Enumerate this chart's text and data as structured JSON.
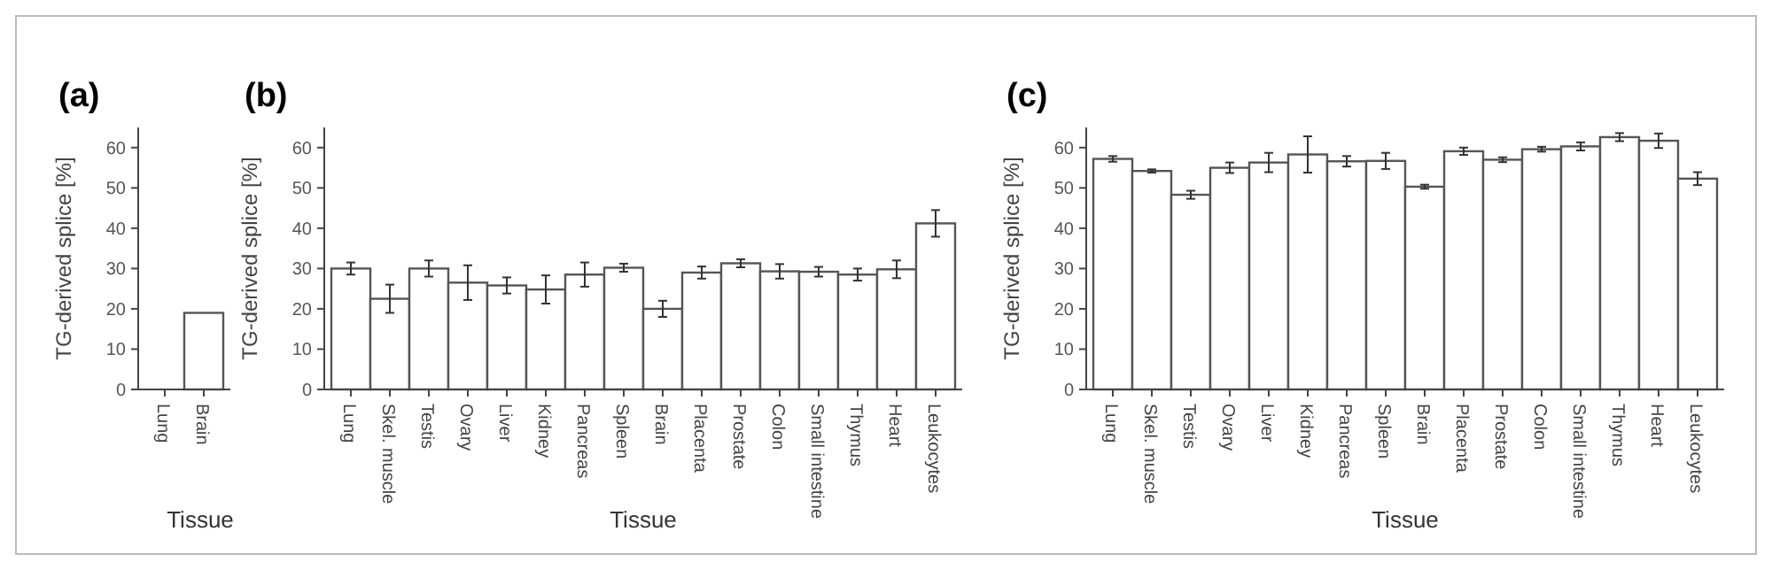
{
  "chart_data": [
    {
      "type": "bar",
      "title": "(a)",
      "xlabel": "Tissue",
      "ylabel": "TG-derived splice [%]",
      "categories": [
        "Lung",
        "Brain"
      ],
      "values": [
        0,
        19
      ],
      "color": "#ffffff",
      "ylim": [
        0,
        65
      ],
      "yticks": [
        0,
        10,
        20,
        30,
        40,
        50,
        60
      ]
    },
    {
      "type": "bar",
      "title": "(b)",
      "xlabel": "Tissue",
      "ylabel": "TG-derived splice [%]",
      "categories": [
        "Lung",
        "Skel. muscle",
        "Testis",
        "Ovary",
        "Liver",
        "Kidney",
        "Pancreas",
        "Spleen",
        "Brain",
        "Placenta",
        "Prostate",
        "Colon",
        "Small intestine",
        "Thymus",
        "Heart",
        "Leukocytes"
      ],
      "values": [
        30,
        22.5,
        30,
        26.5,
        25.8,
        24.8,
        28.5,
        30.2,
        20,
        29,
        31.3,
        29.3,
        29.2,
        28.5,
        29.8,
        41.2
      ],
      "errors": [
        1.5,
        3.5,
        2,
        4.3,
        2,
        3.5,
        3,
        1,
        2,
        1.5,
        1,
        1.8,
        1.2,
        1.5,
        2.2,
        3.3
      ],
      "color": "#ffffff",
      "ylim": [
        0,
        65
      ],
      "yticks": [
        0,
        10,
        20,
        30,
        40,
        50,
        60
      ]
    },
    {
      "type": "bar",
      "title": "(c)",
      "xlabel": "Tissue",
      "ylabel": "TG-derived splice [%]",
      "categories": [
        "Lung",
        "Skel. muscle",
        "Testis",
        "Ovary",
        "Liver",
        "Kidney",
        "Pancreas",
        "Spleen",
        "Brain",
        "Placenta",
        "Prostate",
        "Colon",
        "Small intestine",
        "Thymus",
        "Heart",
        "Leukocytes"
      ],
      "values": [
        57.2,
        54.2,
        48.3,
        55,
        56.3,
        58.3,
        56.6,
        56.7,
        50.3,
        59.1,
        57,
        59.6,
        60.3,
        62.6,
        61.7,
        52.3
      ],
      "errors": [
        0.7,
        0.4,
        1,
        1.3,
        2.4,
        4.5,
        1.3,
        2,
        0.5,
        0.9,
        0.6,
        0.6,
        1,
        1,
        1.8,
        1.6
      ],
      "color": "#ffffff",
      "ylim": [
        0,
        65
      ],
      "yticks": [
        0,
        10,
        20,
        30,
        40,
        50,
        60
      ]
    }
  ]
}
